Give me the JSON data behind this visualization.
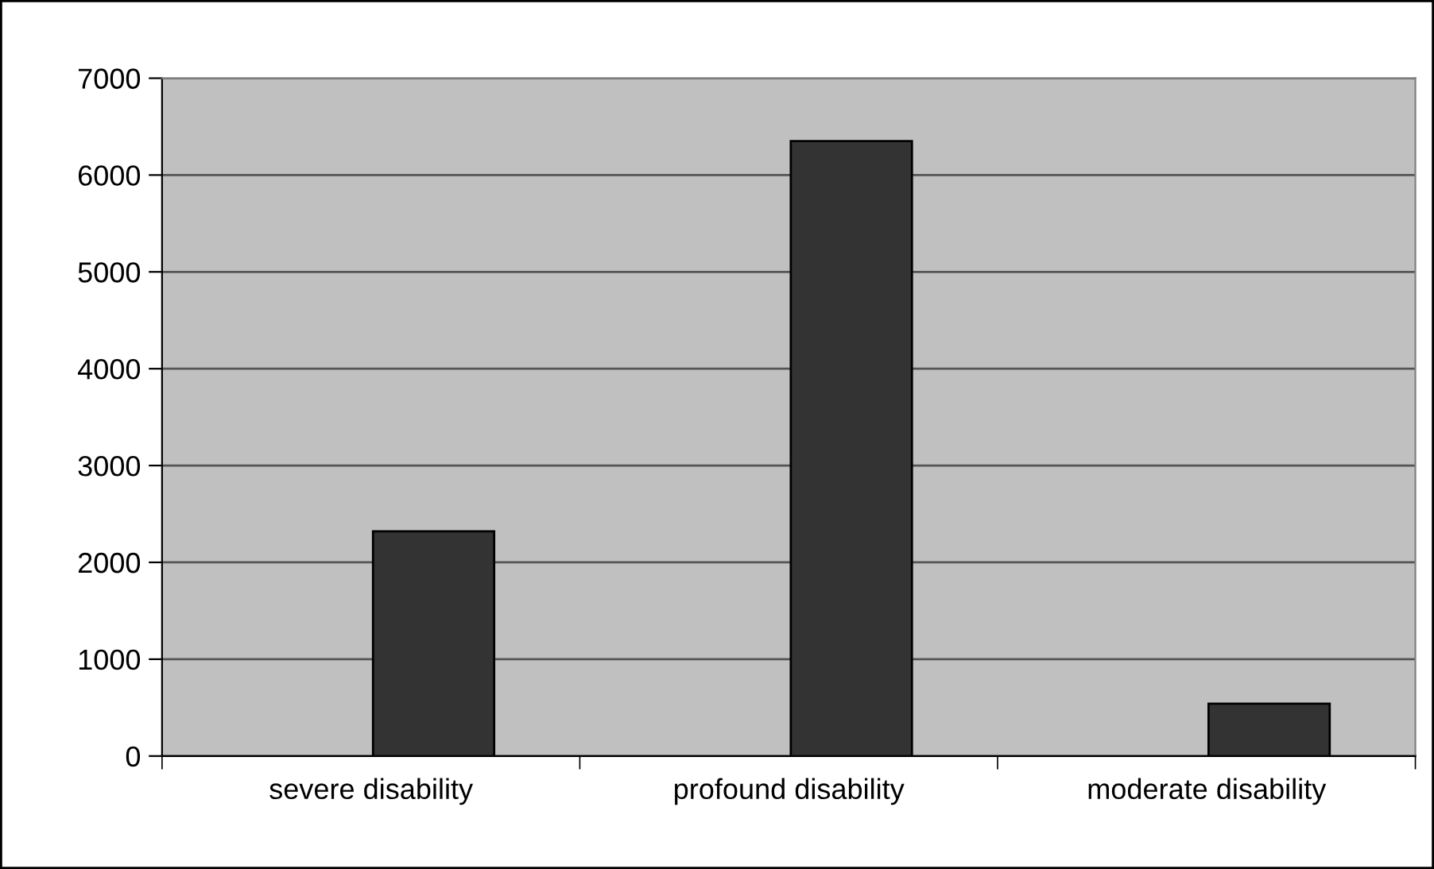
{
  "chart_data": {
    "type": "bar",
    "categories": [
      "severe disability",
      "profound disability",
      "moderate disability"
    ],
    "values": [
      2320,
      6350,
      540
    ],
    "color": "#333333",
    "ylim": [
      0,
      7000
    ],
    "yticks": [
      0,
      1000,
      2000,
      3000,
      4000,
      5000,
      6000,
      7000
    ],
    "grid": "y"
  }
}
